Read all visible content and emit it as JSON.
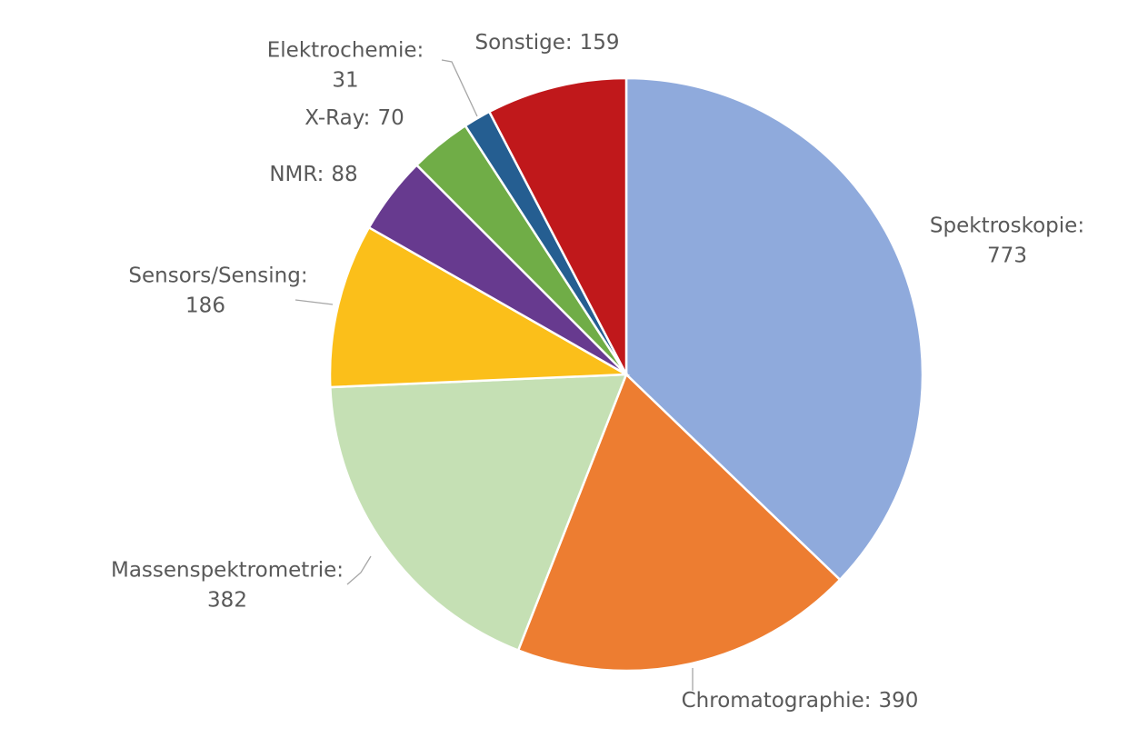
{
  "chart_data": {
    "type": "pie",
    "categories": [
      "Spektroskopie:",
      "Chromatographie:",
      "Massenspektrometrie:",
      "Sensors/Sensing:",
      "NMR:",
      "X-Ray:",
      "Elektrochemie:",
      "Sonstige:"
    ],
    "values": [
      773,
      390,
      382,
      186,
      88,
      70,
      31,
      159
    ],
    "colors": [
      "#8faadc",
      "#ed7d31",
      "#c5e0b4",
      "#fbbf1a",
      "#673a8f",
      "#70ad47",
      "#255e91",
      "#c0181b"
    ]
  }
}
